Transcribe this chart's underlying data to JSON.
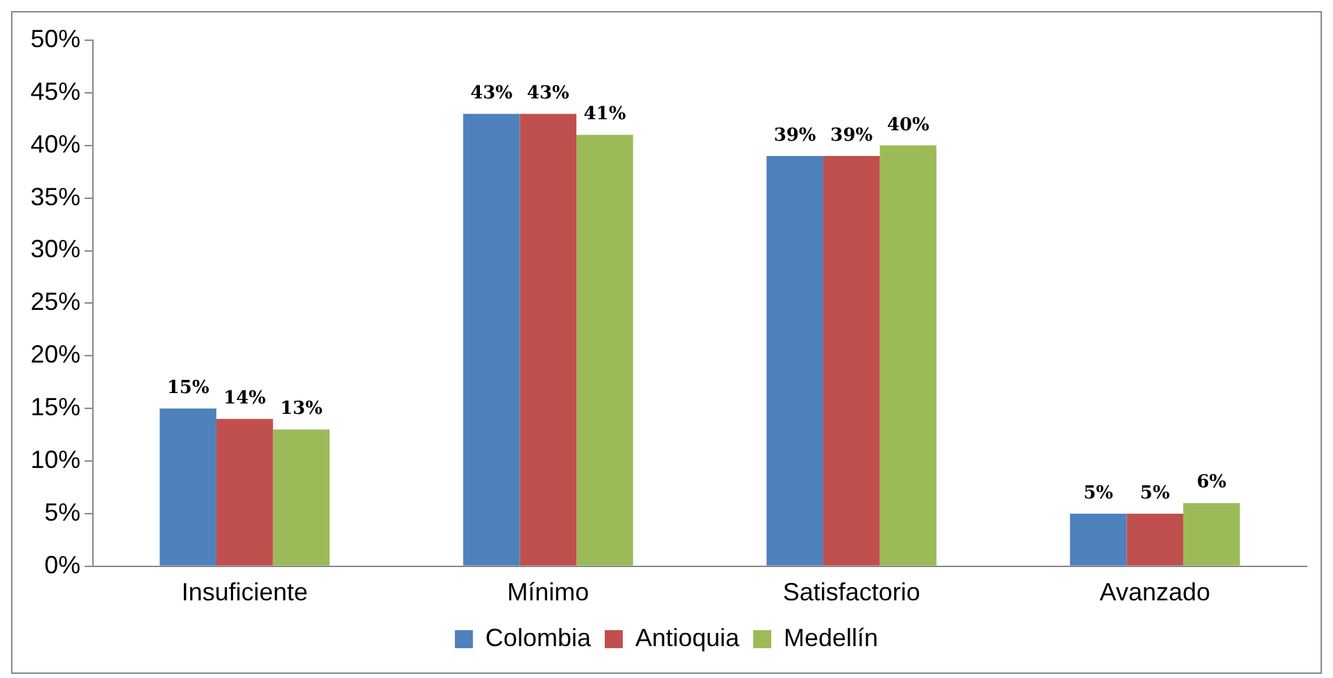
{
  "chart_data": {
    "type": "bar",
    "categories": [
      "Insuficiente",
      "Mínimo",
      "Satisfactorio",
      "Avanzado"
    ],
    "series": [
      {
        "name": "Colombia",
        "color": "#4f81bd",
        "values": [
          15,
          43,
          39,
          5
        ],
        "value_labels": [
          "15%",
          "43%",
          "39%",
          "5%"
        ]
      },
      {
        "name": "Antioquia",
        "color": "#c0504d",
        "values": [
          14,
          43,
          39,
          5
        ],
        "value_labels": [
          "14%",
          "43%",
          "39%",
          "5%"
        ]
      },
      {
        "name": "Medellín",
        "color": "#9bbb59",
        "values": [
          13,
          41,
          40,
          6
        ],
        "value_labels": [
          "13%",
          "41%",
          "40%",
          "6%"
        ]
      }
    ],
    "ylim": [
      0,
      50
    ],
    "yticks": [
      {
        "value": 0,
        "label": "0%"
      },
      {
        "value": 5,
        "label": "5%"
      },
      {
        "value": 10,
        "label": "10%"
      },
      {
        "value": 15,
        "label": "15%"
      },
      {
        "value": 20,
        "label": "20%"
      },
      {
        "value": 25,
        "label": "25%"
      },
      {
        "value": 30,
        "label": "30%"
      },
      {
        "value": 35,
        "label": "35%"
      },
      {
        "value": 40,
        "label": "40%"
      },
      {
        "value": 45,
        "label": "45%"
      },
      {
        "value": 50,
        "label": "50%"
      }
    ],
    "grid": false,
    "legend": "bottom"
  }
}
